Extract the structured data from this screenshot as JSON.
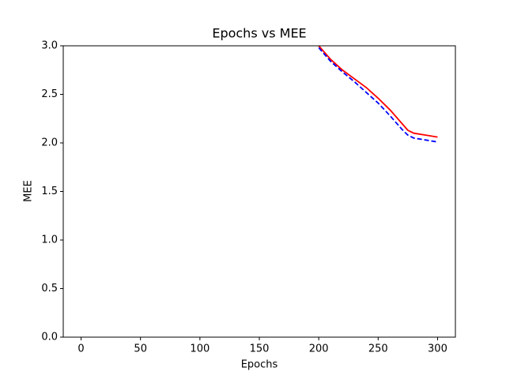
{
  "chart_data": {
    "type": "line",
    "title": "Epochs vs MEE",
    "xlabel": "Epochs",
    "ylabel": "MEE",
    "x": [
      200,
      210,
      220,
      230,
      240,
      250,
      260,
      270,
      275,
      280,
      290,
      300
    ],
    "series": [
      {
        "color": "#ff0000",
        "linestyle": "solid",
        "values": [
          3.0,
          2.86,
          2.75,
          2.66,
          2.57,
          2.46,
          2.34,
          2.2,
          2.13,
          2.1,
          2.08,
          2.06
        ]
      },
      {
        "color": "#0000ff",
        "linestyle": "dashed",
        "values": [
          2.98,
          2.84,
          2.73,
          2.63,
          2.52,
          2.41,
          2.28,
          2.14,
          2.08,
          2.05,
          2.03,
          2.01
        ]
      }
    ],
    "xlim": [
      -15,
      315
    ],
    "ylim": [
      0,
      3
    ],
    "xticks": [
      0,
      50,
      100,
      150,
      200,
      250,
      300
    ],
    "yticks": [
      {
        "value": 0,
        "label": "0.0"
      },
      {
        "value": 0.5,
        "label": "0.5"
      },
      {
        "value": 1,
        "label": "1.0"
      },
      {
        "value": 1.5,
        "label": "1.5"
      },
      {
        "value": 2,
        "label": "2.0"
      },
      {
        "value": 2.5,
        "label": "2.5"
      },
      {
        "value": 3,
        "label": "3.0"
      }
    ],
    "grid": false
  }
}
